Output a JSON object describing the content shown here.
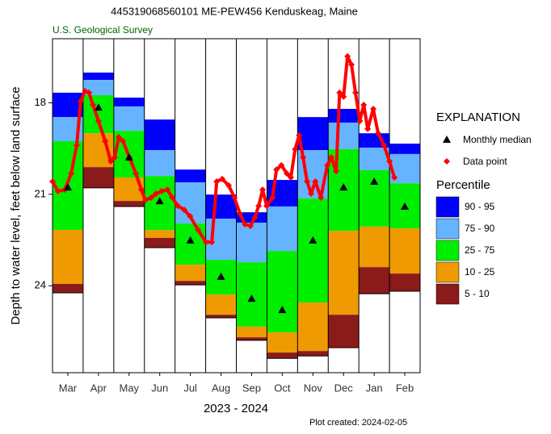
{
  "chart_data": {
    "type": "percentile",
    "title": "445319068560101 ME-PEW456 Kenduskeag, Maine",
    "subtitle": "U.S. Geological Survey",
    "y_label": "Depth to water level, feet below land surface",
    "x_label": "2023 - 2024",
    "footnote": "Plot created: 2024-02-05",
    "legend_title": "EXPLANATION",
    "percentile_title": "Percentile",
    "categories": [
      "Mar",
      "Apr",
      "May",
      "Jun",
      "Jul",
      "Aug",
      "Sep",
      "Oct",
      "Nov",
      "Dec",
      "Jan",
      "Feb"
    ],
    "ylim": [
      15.9,
      26.85
    ],
    "yticks": [
      18,
      21,
      24
    ],
    "y_inverted": true,
    "xlim": [
      0,
      12
    ],
    "series": [
      {
        "name": "90 - 95",
        "color": "#0000ff",
        "top": [
          17.67,
          17.01,
          17.83,
          18.55,
          20.19,
          21.01,
          21.59,
          20.53,
          18.47,
          18.2,
          19.0,
          19.34
        ],
        "bottom": [
          18.47,
          17.25,
          18.12,
          19.55,
          20.61,
          21.8,
          21.93,
          21.4,
          19.55,
          18.65,
          19.47,
          19.68
        ]
      },
      {
        "name": "75 - 90",
        "color": "#66b3ff",
        "top": [
          18.47,
          17.25,
          18.12,
          19.55,
          20.61,
          21.8,
          21.93,
          21.4,
          19.55,
          18.65,
          19.47,
          19.68
        ],
        "bottom": [
          19.26,
          17.75,
          18.92,
          20.4,
          21.96,
          23.15,
          23.23,
          22.86,
          21.14,
          19.52,
          20.21,
          20.64
        ]
      },
      {
        "name": "25 - 75",
        "color": "#00ee00",
        "top": [
          19.26,
          17.75,
          18.92,
          20.4,
          21.96,
          23.15,
          23.23,
          22.86,
          21.14,
          19.52,
          20.21,
          20.64
        ],
        "bottom": [
          22.17,
          19.0,
          20.45,
          22.17,
          23.31,
          24.29,
          25.34,
          25.53,
          24.55,
          22.2,
          22.06,
          22.12
        ]
      },
      {
        "name": "10 - 25",
        "color": "#ee9a00",
        "top": [
          22.17,
          19.0,
          20.45,
          22.17,
          23.31,
          24.29,
          25.34,
          25.53,
          24.55,
          22.2,
          22.06,
          22.12
        ],
        "bottom": [
          23.94,
          20.11,
          21.22,
          22.43,
          23.84,
          24.95,
          25.69,
          26.19,
          26.14,
          24.95,
          23.39,
          23.6
        ]
      },
      {
        "name": "5 - 10",
        "color": "#8b1a1a",
        "top": [
          23.94,
          20.11,
          21.22,
          22.43,
          23.84,
          24.95,
          25.69,
          26.19,
          26.14,
          24.95,
          23.39,
          23.6
        ],
        "bottom": [
          24.23,
          20.79,
          21.4,
          22.75,
          23.97,
          25.05,
          25.79,
          26.38,
          26.3,
          26.03,
          24.26,
          24.18
        ]
      }
    ],
    "medians": {
      "name": "Monthly median",
      "color": "#000000",
      "values": [
        20.77,
        18.15,
        19.79,
        21.22,
        22.51,
        23.7,
        24.42,
        24.79,
        22.51,
        20.77,
        20.58,
        21.4
      ]
    },
    "points": {
      "name": "Data point",
      "color": "#ff0000",
      "x": [
        0,
        0.18,
        0.4,
        0.61,
        0.79,
        0.92,
        1.06,
        1.19,
        1.32,
        1.5,
        1.72,
        1.9,
        2.03,
        2.16,
        2.3,
        2.51,
        2.72,
        2.9,
        3.03,
        3.22,
        3.38,
        3.56,
        3.75,
        3.91,
        4.09,
        4.3,
        4.49,
        4.75,
        5.01,
        5.2,
        5.36,
        5.54,
        5.75,
        5.94,
        6.12,
        6.28,
        6.46,
        6.6,
        6.73,
        6.86,
        6.99,
        7.18,
        7.31,
        7.47,
        7.65,
        7.78,
        7.92,
        8.05,
        8.18,
        8.31,
        8.44,
        8.58,
        8.76,
        8.97,
        9.1,
        9.26,
        9.37,
        9.5,
        9.63,
        9.76,
        9.89,
        10.03,
        10.16,
        10.29,
        10.47,
        10.63,
        10.82,
        11.0,
        11.16
      ],
      "values": [
        20.58,
        20.9,
        20.85,
        20.32,
        19.39,
        17.94,
        17.62,
        17.67,
        18.07,
        18.6,
        19.26,
        19.92,
        19.79,
        19.13,
        19.26,
        19.79,
        20.32,
        20.85,
        21.19,
        21.11,
        20.98,
        20.9,
        20.85,
        21.11,
        21.38,
        21.51,
        21.72,
        22.17,
        22.57,
        22.57,
        20.58,
        20.5,
        20.71,
        21.11,
        21.64,
        21.98,
        22.04,
        21.77,
        21.38,
        20.85,
        21.38,
        21.11,
        20.19,
        20.05,
        20.32,
        20.45,
        19.52,
        19.07,
        19.79,
        20.58,
        20.98,
        20.58,
        21.11,
        20.05,
        19.79,
        20.24,
        17.67,
        17.8,
        16.48,
        16.75,
        17.67,
        18.6,
        18.07,
        18.86,
        18.2,
        19.0,
        19.39,
        19.92,
        20.45
      ]
    }
  }
}
